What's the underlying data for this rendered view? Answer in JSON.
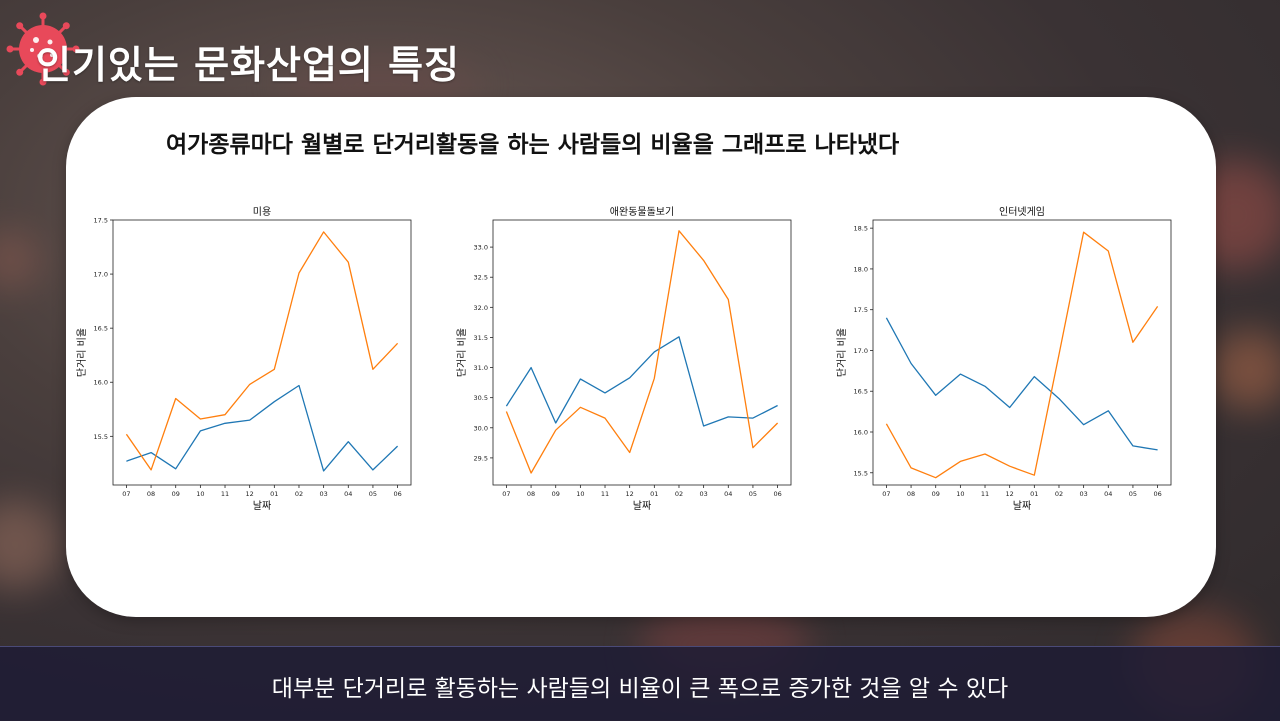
{
  "slide": {
    "title": "인기있는 문화산업의 특징",
    "heading": "여가종류마다 월별로 단거리활동을 하는 사람들의 비율을 그래프로 나타냈다",
    "footer": "대부분 단거리로 활동하는 사람들의 비율이 큰 폭으로 증가한 것을 알 수 있다",
    "icon": "virus-icon"
  },
  "colors": {
    "series_blue": "#1f77b4",
    "series_orange": "#ff7f0e",
    "icon": "#e8495a"
  },
  "chart_data": [
    {
      "type": "line",
      "title": "미용",
      "xlabel": "날짜",
      "ylabel": "단거리 비율",
      "x": [
        "07",
        "08",
        "09",
        "10",
        "11",
        "12",
        "01",
        "02",
        "03",
        "04",
        "05",
        "06"
      ],
      "ylim": [
        15.05,
        17.5
      ],
      "yticks": [
        "15.5",
        "16.0",
        "16.5",
        "17.0",
        "17.5"
      ],
      "series": [
        {
          "values": [
            15.27,
            15.35,
            15.2,
            15.55,
            15.62,
            15.65,
            15.82,
            15.97,
            15.18,
            15.45,
            15.19,
            15.41
          ]
        },
        {
          "values": [
            15.52,
            15.19,
            15.85,
            15.66,
            15.7,
            15.98,
            16.12,
            17.01,
            17.39,
            17.11,
            16.12,
            16.36
          ]
        }
      ]
    },
    {
      "type": "line",
      "title": "애완동물돌보기",
      "xlabel": "날짜",
      "ylabel": "단거리 비율",
      "x": [
        "07",
        "08",
        "09",
        "10",
        "11",
        "12",
        "01",
        "02",
        "03",
        "04",
        "05",
        "06"
      ],
      "ylim": [
        29.05,
        33.45
      ],
      "yticks": [
        "29.5",
        "30.0",
        "30.5",
        "31.0",
        "31.5",
        "32.0",
        "32.5",
        "33.0"
      ],
      "series": [
        {
          "values": [
            30.36,
            31.0,
            30.08,
            30.81,
            30.58,
            30.83,
            31.26,
            31.51,
            30.03,
            30.18,
            30.16,
            30.37
          ]
        },
        {
          "values": [
            30.27,
            29.25,
            29.96,
            30.34,
            30.16,
            29.59,
            30.82,
            33.27,
            32.78,
            32.13,
            29.67,
            30.08
          ]
        }
      ]
    },
    {
      "type": "line",
      "title": "인터넷게임",
      "xlabel": "날짜",
      "ylabel": "단거리 비율",
      "x": [
        "07",
        "08",
        "09",
        "10",
        "11",
        "12",
        "01",
        "02",
        "03",
        "04",
        "05",
        "06"
      ],
      "ylim": [
        15.35,
        18.6
      ],
      "yticks": [
        "15.5",
        "16.0",
        "16.5",
        "17.0",
        "17.5",
        "18.0",
        "18.5"
      ],
      "series": [
        {
          "values": [
            17.4,
            16.84,
            16.45,
            16.71,
            16.56,
            16.3,
            16.68,
            16.41,
            16.09,
            16.26,
            15.83,
            15.78
          ]
        },
        {
          "values": [
            16.1,
            15.56,
            15.44,
            15.64,
            15.73,
            15.58,
            15.47,
            16.95,
            18.45,
            18.22,
            17.1,
            17.54
          ]
        }
      ]
    }
  ]
}
